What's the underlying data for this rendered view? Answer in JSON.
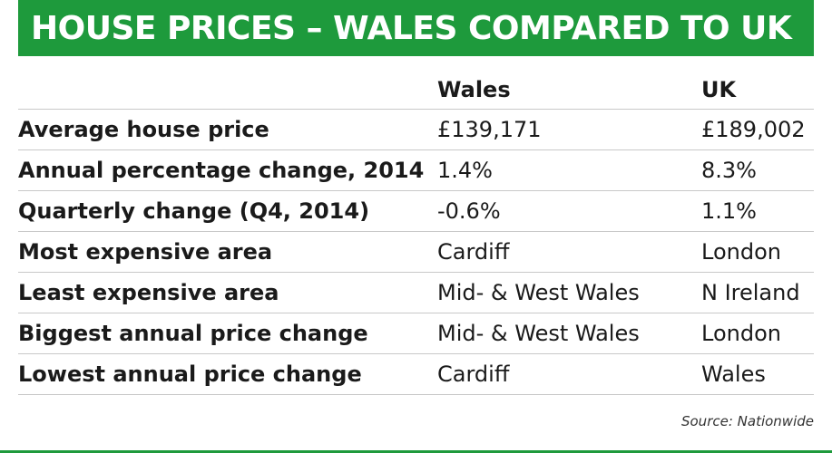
{
  "title": "HOUSE PRICES – WALES COMPARED TO UK",
  "chart_data": {
    "type": "table",
    "columns": [
      "",
      "Wales",
      "UK"
    ],
    "rows": [
      {
        "label": "Average house price",
        "wales": "£139,171",
        "uk": "£189,002"
      },
      {
        "label": "Annual percentage change, 2014",
        "wales": "1.4%",
        "uk": "8.3%"
      },
      {
        "label": "Quarterly change (Q4, 2014)",
        "wales": "-0.6%",
        "uk": "1.1%"
      },
      {
        "label": "Most expensive area",
        "wales": "Cardiff",
        "uk": "London"
      },
      {
        "label": "Least expensive area",
        "wales": "Mid- & West Wales",
        "uk": "N Ireland"
      },
      {
        "label": "Biggest annual price change",
        "wales": "Mid- & West Wales",
        "uk": "London"
      },
      {
        "label": "Lowest annual price change",
        "wales": "Cardiff",
        "uk": "Wales"
      }
    ]
  },
  "source": "Source: Nationwide",
  "colors": {
    "accent": "#1e9a3c"
  }
}
